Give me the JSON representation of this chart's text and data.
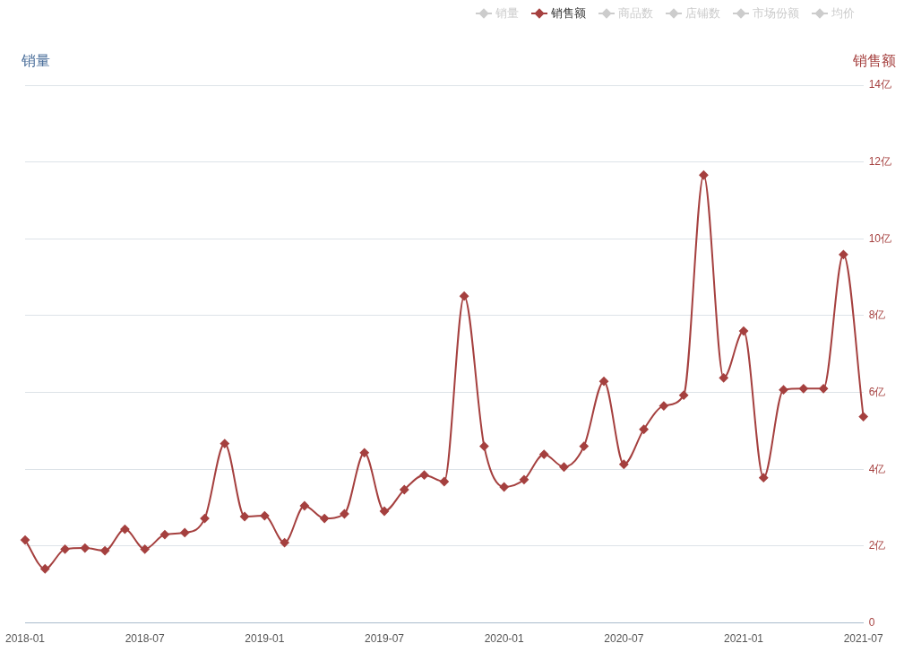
{
  "chart_data": {
    "type": "line",
    "xlabel": null,
    "ylabel": "销量",
    "y2label": "销售额",
    "categories": [
      "2018-01",
      null,
      null,
      null,
      null,
      null,
      "2018-07",
      null,
      null,
      null,
      null,
      null,
      "2019-01",
      null,
      null,
      null,
      null,
      null,
      "2019-07",
      null,
      null,
      null,
      null,
      null,
      "2020-01",
      null,
      null,
      null,
      null,
      null,
      "2020-07",
      null,
      null,
      null,
      null,
      null,
      "2021-01",
      null,
      null,
      null,
      null,
      null,
      "2021-07"
    ],
    "series": [
      {
        "name": "销量",
        "color": "#cccccc",
        "values": [
          null,
          null,
          null,
          null,
          null,
          null,
          null,
          null,
          null,
          null,
          null,
          null,
          null,
          null,
          null,
          null,
          null,
          null,
          null,
          null,
          null,
          null,
          null,
          null,
          null,
          null,
          null,
          null,
          null,
          null,
          null,
          null,
          null,
          null,
          null,
          null,
          null,
          null,
          null,
          null,
          null,
          null,
          null
        ]
      },
      {
        "name": "销售额",
        "color": "#a5403f",
        "axis": "y2",
        "values": [
          2.16,
          1.41,
          1.92,
          1.95,
          1.88,
          2.44,
          1.92,
          2.3,
          2.35,
          2.72,
          4.67,
          2.77,
          2.79,
          2.09,
          3.05,
          2.72,
          2.84,
          4.43,
          2.91,
          3.47,
          3.85,
          3.68,
          8.51,
          4.6,
          3.54,
          3.73,
          4.39,
          4.06,
          4.6,
          6.29,
          4.13,
          5.04,
          5.65,
          5.93,
          11.66,
          6.38,
          7.6,
          3.78,
          6.07,
          6.1,
          6.1,
          9.59,
          5.37
        ]
      },
      {
        "name": "商品数",
        "color": "#cccccc",
        "values": [
          null,
          null,
          null,
          null,
          null,
          null,
          null,
          null,
          null,
          null,
          null,
          null,
          null,
          null,
          null,
          null,
          null,
          null,
          null,
          null,
          null,
          null,
          null,
          null,
          null,
          null,
          null,
          null,
          null,
          null,
          null,
          null,
          null,
          null,
          null,
          null,
          null,
          null,
          null,
          null,
          null,
          null,
          null
        ]
      },
      {
        "name": "店铺数",
        "color": "#cccccc",
        "values": [
          null,
          null,
          null,
          null,
          null,
          null,
          null,
          null,
          null,
          null,
          null,
          null,
          null,
          null,
          null,
          null,
          null,
          null,
          null,
          null,
          null,
          null,
          null,
          null,
          null,
          null,
          null,
          null,
          null,
          null,
          null,
          null,
          null,
          null,
          null,
          null,
          null,
          null,
          null,
          null,
          null,
          null,
          null
        ]
      },
      {
        "name": "市场份额",
        "color": "#cccccc",
        "values": [
          null,
          null,
          null,
          null,
          null,
          null,
          null,
          null,
          null,
          null,
          null,
          null,
          null,
          null,
          null,
          null,
          null,
          null,
          null,
          null,
          null,
          null,
          null,
          null,
          null,
          null,
          null,
          null,
          null,
          null,
          null,
          null,
          null,
          null,
          null,
          null,
          null,
          null,
          null,
          null,
          null,
          null,
          null
        ]
      },
      {
        "name": "均价",
        "color": "#cccccc",
        "values": [
          null,
          null,
          null,
          null,
          null,
          null,
          null,
          null,
          null,
          null,
          null,
          null,
          null,
          null,
          null,
          null,
          null,
          null,
          null,
          null,
          null,
          null,
          null,
          null,
          null,
          null,
          null,
          null,
          null,
          null,
          null,
          null,
          null,
          null,
          null,
          null,
          null,
          null,
          null,
          null,
          null,
          null,
          null
        ]
      }
    ],
    "y2lim": [
      0,
      14
    ],
    "y2ticks": [
      0,
      {
        "value": 2,
        "label": "2亿"
      },
      {
        "value": 4,
        "label": "4亿"
      },
      {
        "value": 6,
        "label": "6亿"
      },
      {
        "value": 8,
        "label": "8亿"
      },
      {
        "value": 10,
        "label": "10亿"
      },
      {
        "value": 12,
        "label": "12亿"
      },
      {
        "value": 14,
        "label": "14亿"
      }
    ],
    "grid": "y",
    "legend": "top right",
    "marker": "diamond",
    "line_style": "solid"
  }
}
